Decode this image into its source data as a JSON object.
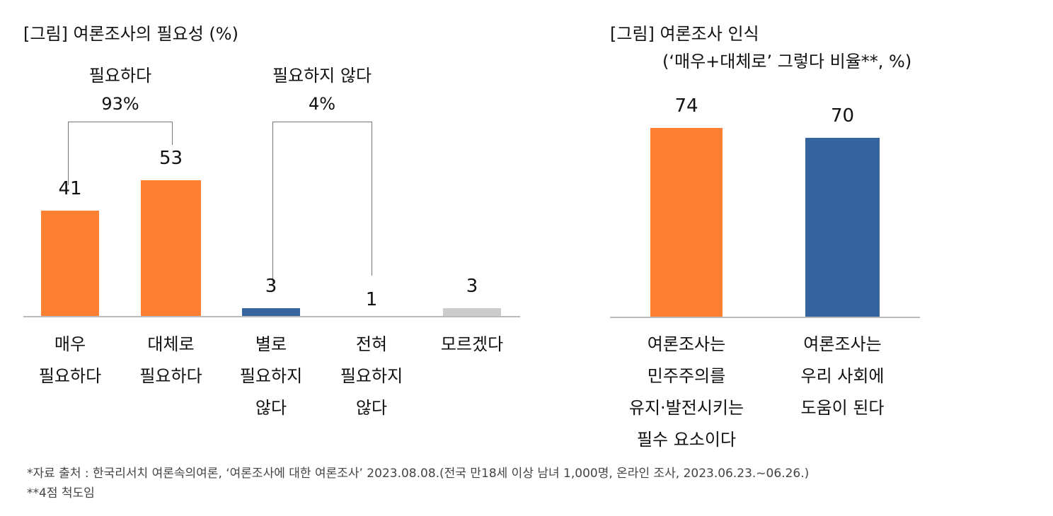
{
  "chart_data": [
    {
      "type": "bar",
      "title": "[그림] 여론조사의 필요성 (%)",
      "categories": [
        "매우\n필요하다",
        "대체로\n필요하다",
        "별로\n필요하지\n않다",
        "전혀\n필요하지\n않다",
        "모르겠다"
      ],
      "values": [
        41,
        53,
        3,
        1,
        3
      ],
      "colors": [
        "#FF8033",
        "#FF8033",
        "#36649E",
        "#36649E",
        "#CCCCCC"
      ],
      "groups": [
        {
          "label": "필요하다",
          "total": "93%"
        },
        {
          "label": "필요하지 않다",
          "total": "4%"
        }
      ],
      "grid": false
    },
    {
      "type": "bar",
      "title": "[그림] 여론조사 인식",
      "subtitle": "(‘매우+대체로’ 그렇다 비율**, %)",
      "categories": [
        "여론조사는\n민주주의를\n유지·발전시키는\n필수 요소이다",
        "여론조사는\n우리 사회에\n도움이 된다"
      ],
      "values": [
        74,
        70
      ],
      "colors": [
        "#FF8033",
        "#36649E"
      ],
      "grid": false
    }
  ],
  "footnotes": [
    "*자료 출처 : 한국리서치 여론속의여론, ‘여론조사에 대한 여론조사’ 2023.08.08.(전국 만18세 이상 남녀 1,000명, 온라인 조사, 2023.06.23.~06.26.)",
    "**4점 척도임"
  ]
}
